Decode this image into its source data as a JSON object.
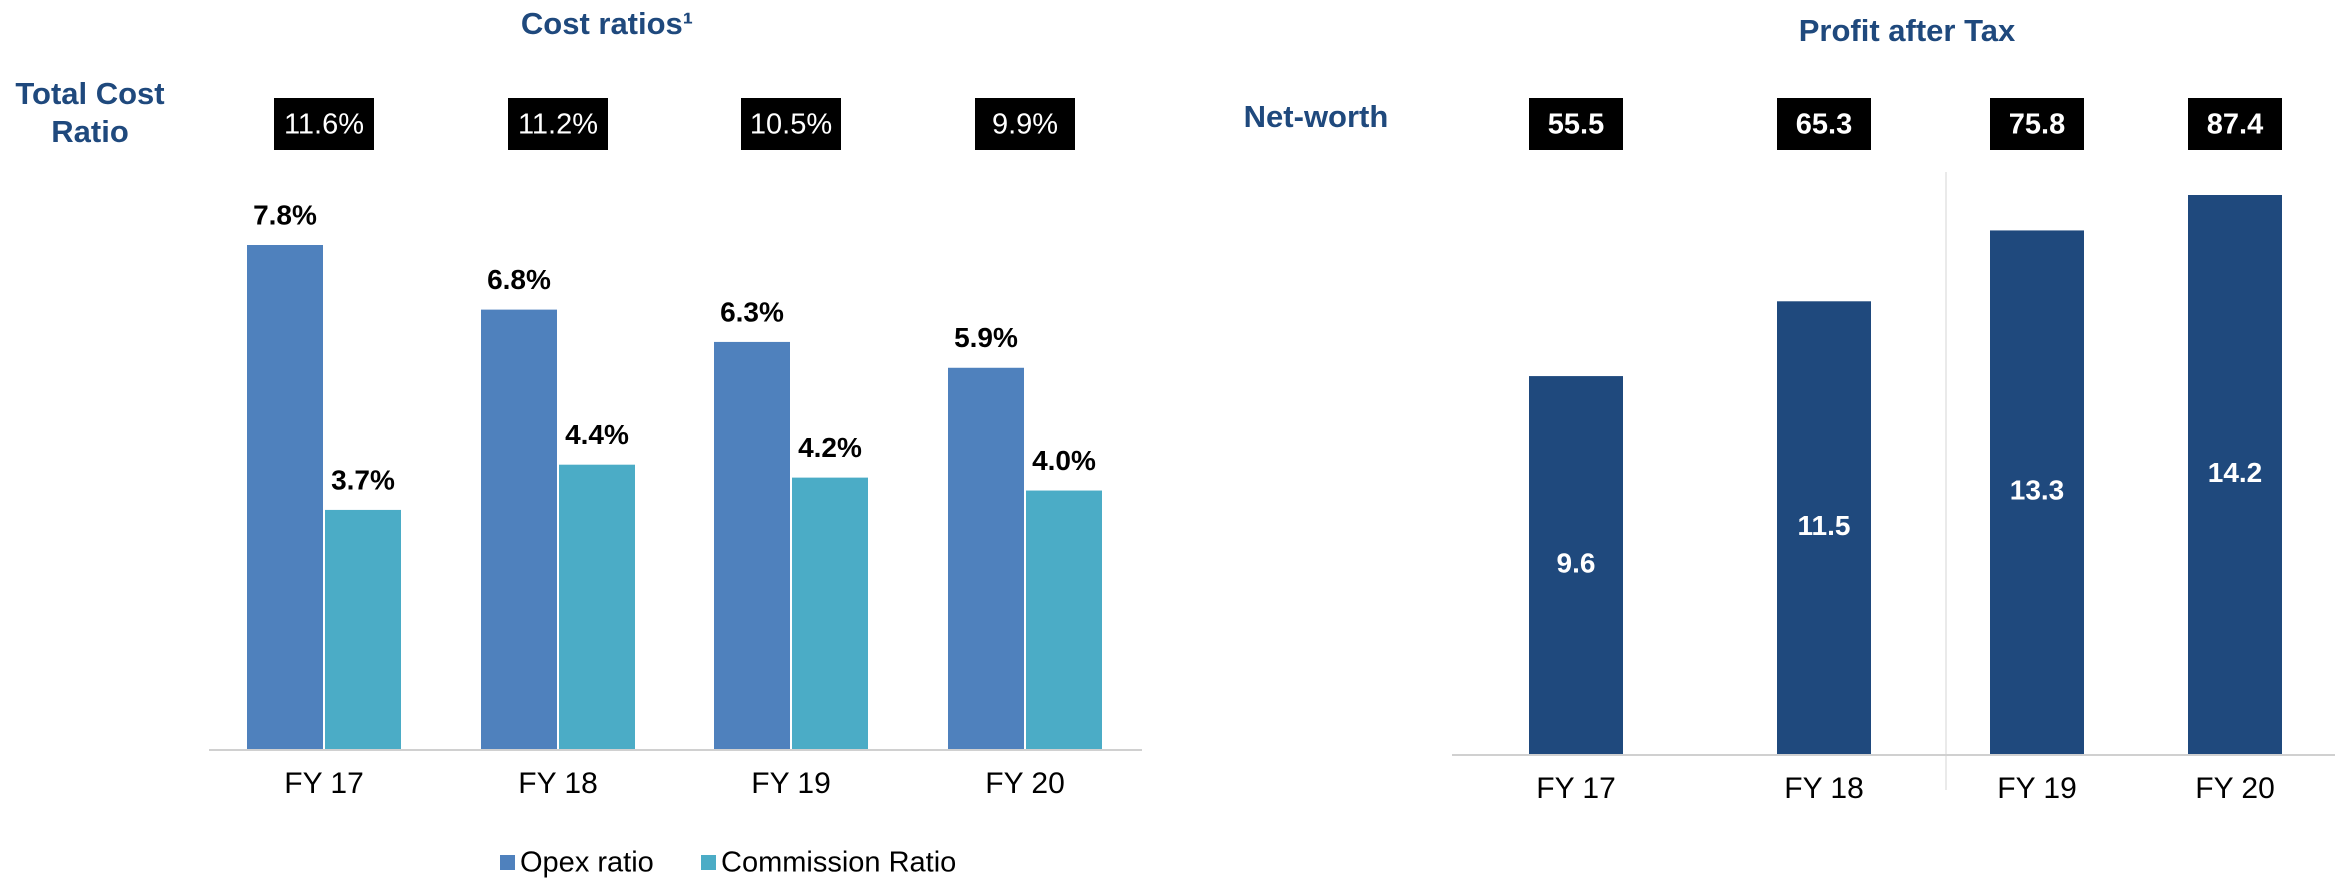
{
  "chart_data": [
    {
      "type": "grouped-bar",
      "title": "Cost ratios¹",
      "categories": [
        "FY 17",
        "FY 18",
        "FY 19",
        "FY 20"
      ],
      "series": [
        {
          "name": "Opex ratio",
          "color": "#4f81bd",
          "values": [
            7.8,
            6.8,
            6.3,
            5.9
          ],
          "value_labels": [
            "7.8%",
            "6.8%",
            "6.3%",
            "5.9%"
          ]
        },
        {
          "name": "Commission Ratio",
          "color": "#4bacc6",
          "values": [
            3.7,
            4.4,
            4.2,
            4.0
          ],
          "value_labels": [
            "3.7%",
            "4.4%",
            "4.2%",
            "4.0%"
          ]
        }
      ],
      "totals_label": [
        "Total Cost",
        "Ratio"
      ],
      "totals": [
        11.6,
        11.2,
        10.5,
        9.9
      ],
      "totals_value_labels": [
        "11.6%",
        "11.2%",
        "10.5%",
        "9.9%"
      ],
      "legend": "bottom"
    },
    {
      "type": "bar",
      "title": "Profit after Tax",
      "categories": [
        "FY 17",
        "FY 18",
        "FY 19",
        "FY 20"
      ],
      "values": [
        9.6,
        11.5,
        13.3,
        14.2
      ],
      "color": "#1f497d",
      "totals_label": [
        "Net-worth"
      ],
      "totals": [
        55.5,
        65.3,
        75.8,
        87.4
      ]
    }
  ]
}
